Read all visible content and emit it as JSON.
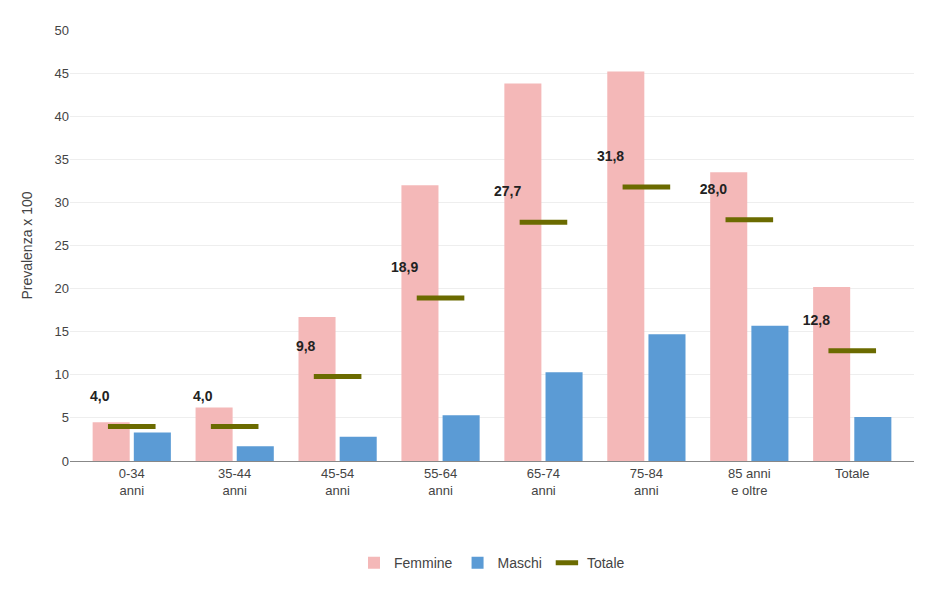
{
  "chart_data": {
    "type": "bar",
    "categories": [
      "0-34\nanni",
      "35-44\nanni",
      "45-54\nanni",
      "55-64\nanni",
      "65-74\nanni",
      "75-84\nanni",
      "85 anni\ne oltre",
      "Totale"
    ],
    "series": [
      {
        "name": "Femmine",
        "color": "#f4b8b8",
        "values": [
          4.5,
          6.2,
          16.7,
          32.0,
          43.8,
          45.2,
          33.5,
          20.2
        ]
      },
      {
        "name": "Maschi",
        "color": "#5b9bd5",
        "values": [
          3.3,
          1.7,
          2.8,
          5.3,
          10.3,
          14.7,
          15.7,
          5.1
        ]
      },
      {
        "name": "Totale",
        "type": "scatter",
        "marker": "line-ew",
        "color": "#6b6b00",
        "values": [
          4.0,
          4.0,
          9.8,
          18.9,
          27.7,
          31.8,
          28.0,
          12.8
        ],
        "value_labels": [
          "4,0",
          "4,0",
          "9,8",
          "18,9",
          "27,7",
          "31,8",
          "28,0",
          "12,8"
        ],
        "data_labels": true
      }
    ],
    "ylabel": "Prevalenza x 100",
    "ylim": [
      0,
      50
    ],
    "yticks": [
      0,
      5,
      10,
      15,
      20,
      25,
      30,
      35,
      40,
      45,
      50
    ],
    "grid": true,
    "legend": "bottom"
  }
}
